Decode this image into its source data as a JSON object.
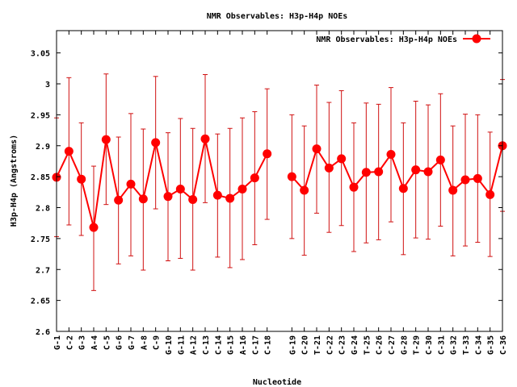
{
  "chart_data": {
    "type": "line",
    "title": "NMR Observables: H3p-H4p NOEs",
    "xlabel": "Nucleotide",
    "ylabel": "H3p-H4p (Angstroms)",
    "ylim": [
      2.6,
      3.086
    ],
    "yticks": [
      "2.6",
      "2.65",
      "2.7",
      "2.75",
      "2.8",
      "2.85",
      "2.9",
      "2.95",
      "3",
      "3.05"
    ],
    "legend": {
      "label": "NMR Observables: H3p-H4p NOEs",
      "position": "top-right"
    },
    "grid": false,
    "error_bars": true,
    "colors": {
      "series": "#ff0000",
      "error": "#d01010",
      "axis": "#000000"
    },
    "categories": [
      "G-1",
      "C-2",
      "G-3",
      "A-4",
      "C-5",
      "G-6",
      "G-7",
      "A-8",
      "C-9",
      "G-10",
      "G-11",
      "A-12",
      "C-13",
      "C-14",
      "G-15",
      "A-16",
      "C-17",
      "C-18",
      "",
      "G-19",
      "C-20",
      "T-21",
      "C-22",
      "C-23",
      "G-24",
      "T-25",
      "C-26",
      "C-27",
      "G-28",
      "T-29",
      "C-30",
      "C-31",
      "G-32",
      "T-33",
      "C-34",
      "G-35",
      "C-36"
    ],
    "series": [
      {
        "values": [
          2.849,
          2.891,
          2.846,
          2.768,
          2.91,
          2.812,
          2.838,
          2.814,
          2.905,
          2.818,
          2.83,
          2.813,
          2.911,
          2.82,
          2.815,
          2.83,
          2.848,
          2.887,
          null,
          2.85,
          2.828,
          2.895,
          2.864,
          2.879,
          2.833,
          2.857,
          2.858,
          2.886,
          2.831,
          2.861,
          2.858,
          2.877,
          2.828,
          2.845,
          2.847,
          2.821,
          2.9
        ],
        "err_low": [
          2.753,
          2.772,
          2.755,
          2.666,
          2.805,
          2.709,
          2.722,
          2.699,
          2.798,
          2.714,
          2.718,
          2.699,
          2.808,
          2.72,
          2.703,
          2.716,
          2.74,
          2.781,
          null,
          2.75,
          2.723,
          2.791,
          2.76,
          2.771,
          2.729,
          2.743,
          2.748,
          2.777,
          2.724,
          2.751,
          2.749,
          2.77,
          2.722,
          2.738,
          2.744,
          2.721,
          2.794
        ],
        "err_high": [
          2.945,
          3.01,
          2.937,
          2.867,
          3.016,
          2.914,
          2.952,
          2.927,
          3.012,
          2.921,
          2.944,
          2.928,
          3.015,
          2.919,
          2.928,
          2.945,
          2.955,
          2.992,
          null,
          2.95,
          2.932,
          2.998,
          2.97,
          2.989,
          2.937,
          2.969,
          2.967,
          2.994,
          2.937,
          2.972,
          2.966,
          2.984,
          2.932,
          2.951,
          2.95,
          2.922,
          3.007
        ]
      }
    ]
  }
}
